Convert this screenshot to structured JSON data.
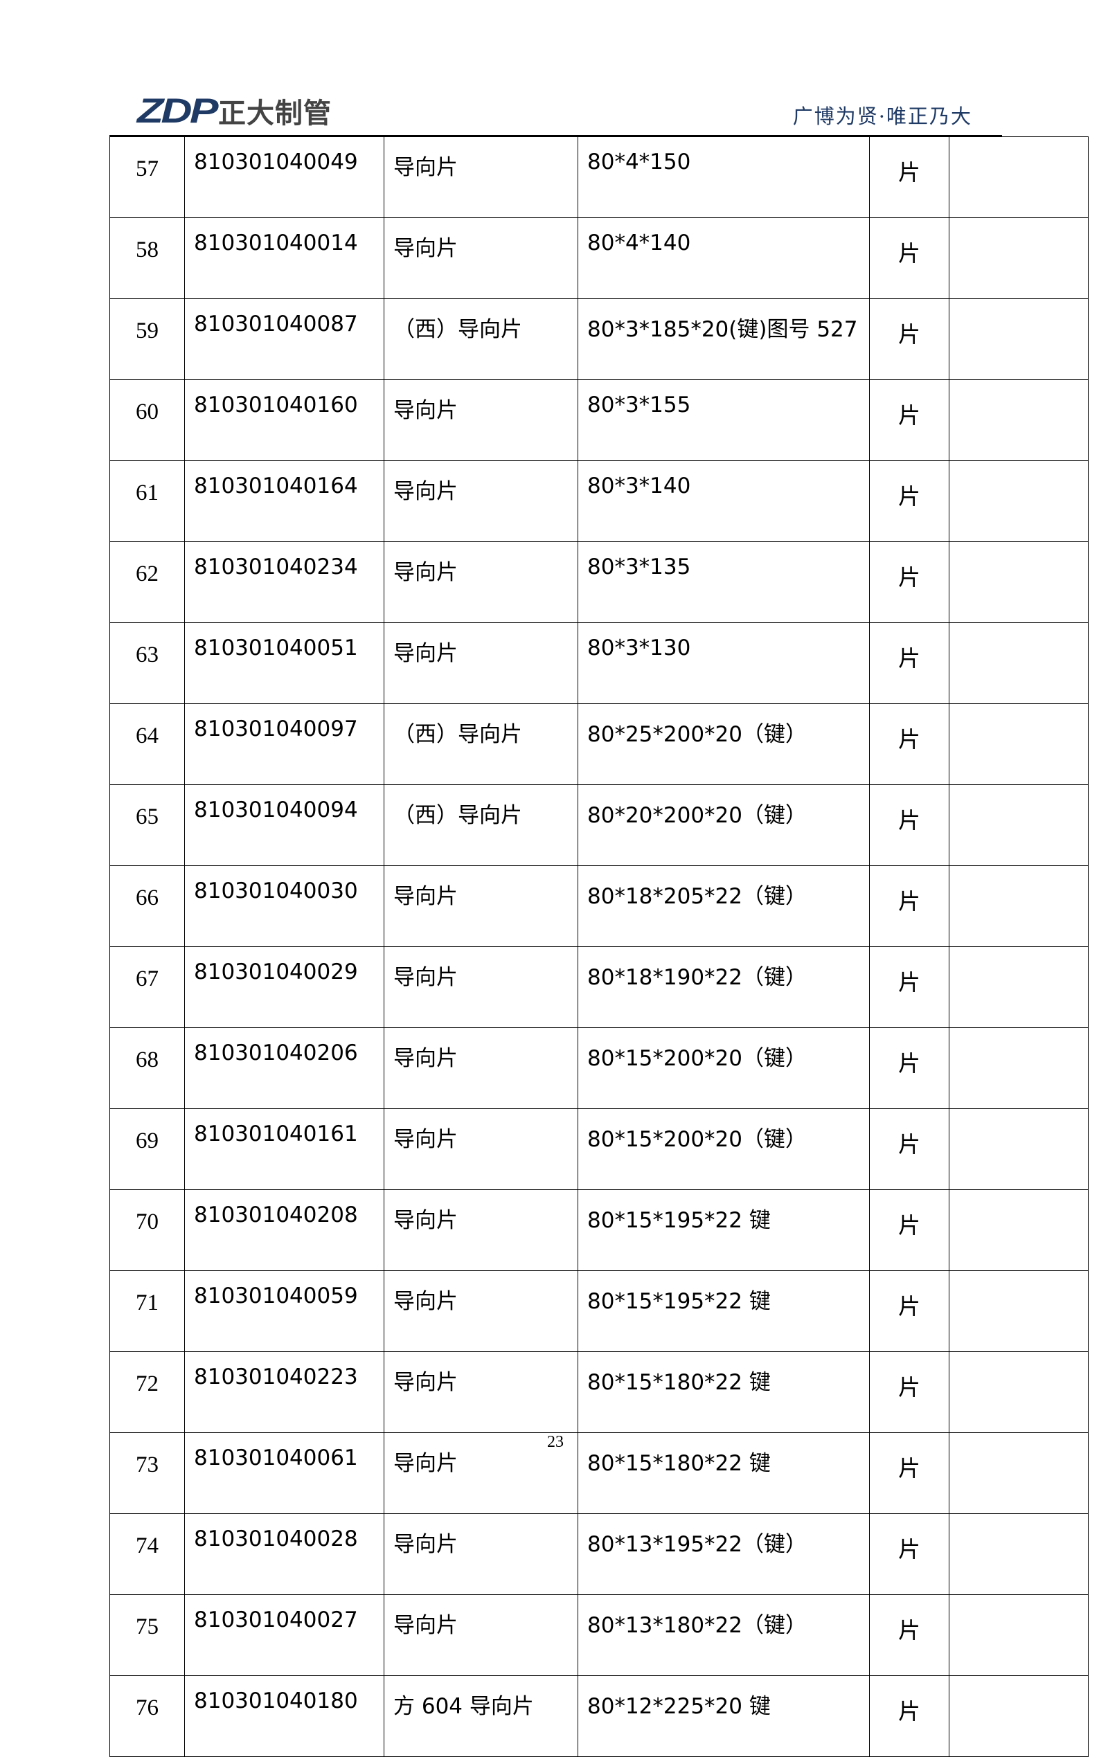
{
  "header": {
    "logo_mark": "ZDP",
    "logo_name": "正大制管",
    "motto": "广博为贤·唯正乃大",
    "brand_color": "#1f3a64"
  },
  "rows": [
    {
      "no": "57",
      "code": "810301040049",
      "name": "导向片",
      "spec": "80*4*150",
      "unit": "片",
      "note": ""
    },
    {
      "no": "58",
      "code": "810301040014",
      "name": "导向片",
      "spec": "80*4*140",
      "unit": "片",
      "note": ""
    },
    {
      "no": "59",
      "code": "810301040087",
      "name": "（西）导向片",
      "spec": "80*3*185*20(键)图号 527",
      "unit": "片",
      "note": ""
    },
    {
      "no": "60",
      "code": "810301040160",
      "name": "导向片",
      "spec": "80*3*155",
      "unit": "片",
      "note": ""
    },
    {
      "no": "61",
      "code": "810301040164",
      "name": "导向片",
      "spec": "80*3*140",
      "unit": "片",
      "note": ""
    },
    {
      "no": "62",
      "code": "810301040234",
      "name": "导向片",
      "spec": "80*3*135",
      "unit": "片",
      "note": ""
    },
    {
      "no": "63",
      "code": "810301040051",
      "name": "导向片",
      "spec": "80*3*130",
      "unit": "片",
      "note": ""
    },
    {
      "no": "64",
      "code": "810301040097",
      "name": "（西）导向片",
      "spec": "80*25*200*20（键）",
      "unit": "片",
      "note": ""
    },
    {
      "no": "65",
      "code": "810301040094",
      "name": "（西）导向片",
      "spec": "80*20*200*20（键）",
      "unit": "片",
      "note": ""
    },
    {
      "no": "66",
      "code": "810301040030",
      "name": "导向片",
      "spec": "80*18*205*22（键）",
      "unit": "片",
      "note": ""
    },
    {
      "no": "67",
      "code": "810301040029",
      "name": "导向片",
      "spec": "80*18*190*22（键）",
      "unit": "片",
      "note": ""
    },
    {
      "no": "68",
      "code": "810301040206",
      "name": "导向片",
      "spec": "80*15*200*20（键）",
      "unit": "片",
      "note": ""
    },
    {
      "no": "69",
      "code": "810301040161",
      "name": "导向片",
      "spec": "80*15*200*20（键）",
      "unit": "片",
      "note": ""
    },
    {
      "no": "70",
      "code": "810301040208",
      "name": "导向片",
      "spec": "80*15*195*22 键",
      "unit": "片",
      "note": ""
    },
    {
      "no": "71",
      "code": "810301040059",
      "name": "导向片",
      "spec": "80*15*195*22 键",
      "unit": "片",
      "note": ""
    },
    {
      "no": "72",
      "code": "810301040223",
      "name": "导向片",
      "spec": "80*15*180*22 键",
      "unit": "片",
      "note": ""
    },
    {
      "no": "73",
      "code": "810301040061",
      "name": "导向片",
      "spec": "80*15*180*22 键",
      "unit": "片",
      "note": ""
    },
    {
      "no": "74",
      "code": "810301040028",
      "name": "导向片",
      "spec": "80*13*195*22（键）",
      "unit": "片",
      "note": ""
    },
    {
      "no": "75",
      "code": "810301040027",
      "name": "导向片",
      "spec": "80*13*180*22（键）",
      "unit": "片",
      "note": ""
    },
    {
      "no": "76",
      "code": "810301040180",
      "name": "方 604 导向片",
      "spec": "80*12*225*20 键",
      "unit": "片",
      "note": ""
    }
  ],
  "footer": {
    "page_number": "23"
  }
}
